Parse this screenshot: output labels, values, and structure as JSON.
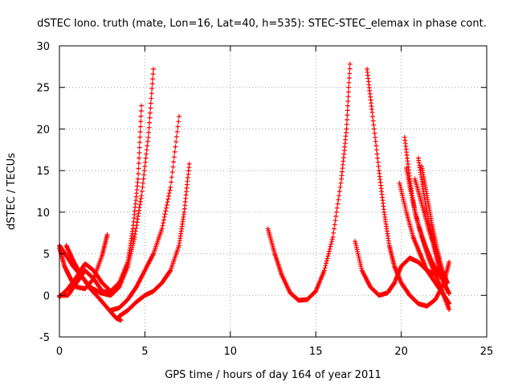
{
  "chart_data": {
    "type": "scatter",
    "title": "dSTEC Iono. truth (mate, Lon=16, Lat=40, h=535): STEC-STEC_elemax in phase cont.",
    "xlabel": "GPS time / hours of day 164 of year 2011",
    "ylabel": "dSTEC  / TECUs",
    "xlim": [
      0,
      25
    ],
    "ylim": [
      -5,
      30
    ],
    "xticks": [
      0,
      5,
      10,
      15,
      20,
      25
    ],
    "yticks": [
      -5,
      0,
      5,
      10,
      15,
      20,
      25,
      30
    ],
    "grid": true,
    "marker": "+",
    "color": "#ff0000",
    "series": [
      {
        "x": [
          0.0,
          0.3,
          0.7,
          1.0,
          1.5,
          2.0,
          2.5,
          2.8
        ],
        "y": [
          5.7,
          3.5,
          1.8,
          1.0,
          0.8,
          2.0,
          4.8,
          7.3
        ]
      },
      {
        "x": [
          0.0,
          0.4,
          0.8,
          1.3,
          1.8,
          2.4,
          3.0,
          3.5,
          4.0,
          4.4,
          4.8,
          5.2,
          5.5
        ],
        "y": [
          6.0,
          4.8,
          3.5,
          2.3,
          1.0,
          0.3,
          0.0,
          1.0,
          3.5,
          7.0,
          12.0,
          19.0,
          27.2
        ]
      },
      {
        "x": [
          0.0,
          0.5,
          1.0,
          1.5,
          2.0,
          2.5,
          3.0,
          3.5,
          4.0,
          4.3,
          4.6,
          4.8
        ],
        "y": [
          -0.2,
          0.8,
          2.2,
          3.8,
          3.0,
          1.5,
          0.5,
          1.5,
          4.0,
          8.0,
          14.0,
          22.8
        ]
      },
      {
        "x": [
          0.4,
          0.8,
          1.2,
          1.8,
          2.3,
          2.8,
          3.3,
          3.6
        ],
        "y": [
          6.0,
          4.2,
          2.6,
          0.8,
          -0.3,
          -1.5,
          -2.7,
          -3.0
        ]
      },
      {
        "x": [
          3.0,
          3.5,
          4.0,
          4.5,
          5.0,
          5.5,
          6.0,
          6.5,
          7.0
        ],
        "y": [
          -1.8,
          -1.5,
          -0.5,
          1.0,
          3.0,
          5.0,
          8.0,
          13.0,
          21.5
        ]
      },
      {
        "x": [
          3.5,
          4.0,
          4.5,
          5.0,
          5.5,
          6.0,
          6.5,
          7.0,
          7.3,
          7.6
        ],
        "y": [
          -2.5,
          -1.8,
          -0.8,
          0.0,
          0.5,
          1.5,
          3.0,
          6.0,
          10.0,
          15.8
        ]
      },
      {
        "x": [
          0.0,
          0.5,
          1.0,
          1.5,
          2.0,
          2.5,
          3.0
        ],
        "y": [
          0.0,
          0.0,
          1.5,
          3.0,
          2.0,
          0.5,
          0.3
        ]
      },
      {
        "x": [
          12.2,
          12.6,
          13.0,
          13.5,
          14.0,
          14.5,
          15.0,
          15.5,
          16.0,
          16.5,
          16.8,
          17.0
        ],
        "y": [
          8.0,
          5.0,
          2.5,
          0.3,
          -0.6,
          -0.5,
          0.5,
          3.0,
          7.0,
          14.0,
          20.0,
          27.8
        ]
      },
      {
        "x": [
          17.3,
          17.7,
          18.2,
          18.7,
          19.2,
          19.6,
          20.0,
          20.5,
          21.0,
          21.5,
          22.0
        ],
        "y": [
          6.5,
          3.0,
          1.0,
          0.0,
          0.3,
          1.5,
          3.5,
          4.5,
          4.0,
          3.0,
          2.5
        ]
      },
      {
        "x": [
          18.0,
          18.3,
          18.7,
          19.0,
          19.3,
          19.6,
          20.0,
          20.5,
          21.0,
          21.5,
          22.0,
          22.5,
          22.8
        ],
        "y": [
          27.2,
          22.0,
          15.0,
          10.0,
          6.0,
          3.5,
          1.5,
          0.0,
          -1.0,
          -1.3,
          -0.5,
          1.5,
          4.0
        ]
      },
      {
        "x": [
          19.9,
          20.3,
          20.7,
          21.1,
          21.5,
          22.0,
          22.5,
          22.8
        ],
        "y": [
          13.5,
          10.0,
          7.0,
          5.0,
          3.0,
          1.5,
          0.0,
          -1.0
        ]
      },
      {
        "x": [
          20.2,
          20.5,
          20.8,
          21.2,
          21.6,
          22.0,
          22.4,
          22.8
        ],
        "y": [
          19.0,
          14.0,
          10.0,
          7.0,
          4.5,
          2.5,
          0.5,
          -1.7
        ]
      },
      {
        "x": [
          20.3,
          20.6,
          21.0,
          21.4,
          21.8,
          22.2,
          22.6
        ],
        "y": [
          15.3,
          12.0,
          8.5,
          6.0,
          4.0,
          2.5,
          1.5
        ]
      },
      {
        "x": [
          21.0,
          21.3,
          21.6,
          21.9,
          22.2,
          22.5,
          22.8
        ],
        "y": [
          16.5,
          12.5,
          9.0,
          6.0,
          3.5,
          1.5,
          0.2
        ]
      },
      {
        "x": [
          20.8,
          21.2,
          21.6,
          22.0,
          22.3,
          22.6
        ],
        "y": [
          14.0,
          11.0,
          8.0,
          5.5,
          3.0,
          1.0
        ]
      },
      {
        "x": [
          21.2,
          21.5,
          21.8,
          22.1,
          22.4,
          22.7
        ],
        "y": [
          15.5,
          12.0,
          8.5,
          5.5,
          3.0,
          1.5
        ]
      }
    ]
  }
}
